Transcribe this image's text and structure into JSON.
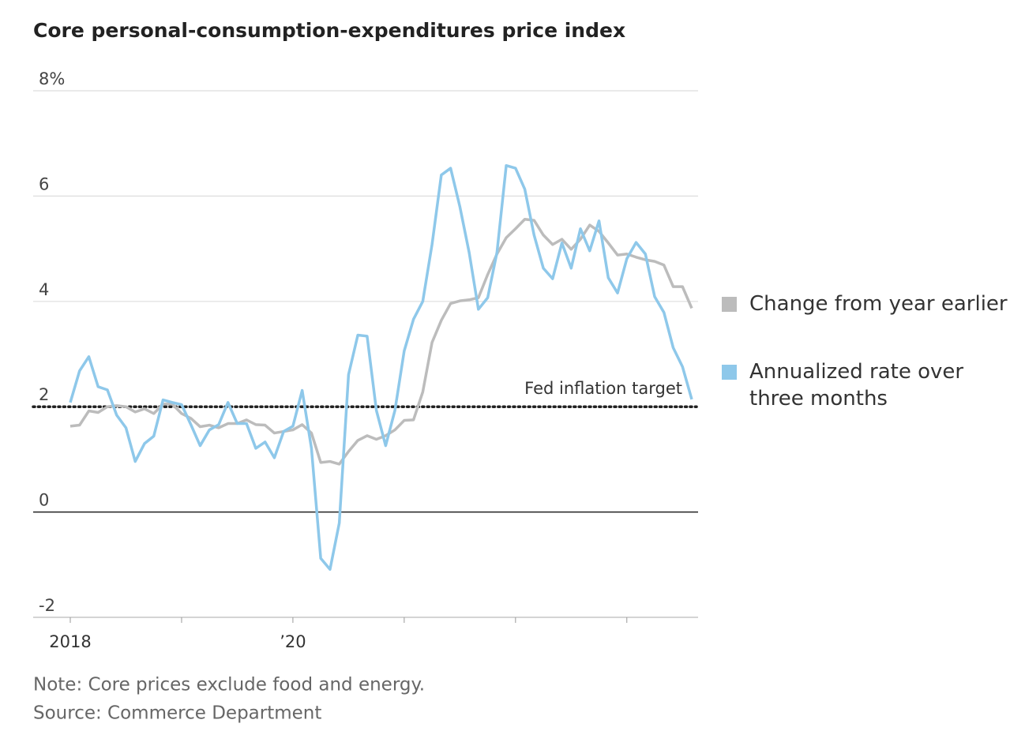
{
  "chart_data": {
    "type": "line",
    "title": "Core personal-consumption-expenditures price index",
    "categories": [
      "2018",
      null,
      null,
      null,
      null,
      null,
      null,
      null,
      null,
      null,
      null,
      null,
      null,
      null,
      null,
      null,
      null,
      null,
      null,
      null,
      null,
      null,
      null,
      null,
      "’20",
      null,
      null,
      null,
      null,
      null,
      null,
      null,
      null,
      null,
      null,
      null,
      null,
      null,
      null,
      null,
      null,
      null,
      null,
      null,
      null,
      null,
      null,
      null,
      null,
      null,
      null,
      null,
      null,
      null,
      null,
      null,
      null,
      null,
      null,
      null,
      null,
      null,
      null,
      null,
      null,
      null,
      null,
      null
    ],
    "series": [
      {
        "name": "Change from year earlier",
        "color": "#bcbcbc",
        "values": [
          1.63,
          1.65,
          1.92,
          1.89,
          2.0,
          2.02,
          2.0,
          1.9,
          1.96,
          1.87,
          2.05,
          2.05,
          1.87,
          1.78,
          1.62,
          1.65,
          1.6,
          1.68,
          1.68,
          1.75,
          1.66,
          1.65,
          1.5,
          1.53,
          1.56,
          1.66,
          1.5,
          0.94,
          0.96,
          0.91,
          1.15,
          1.36,
          1.45,
          1.38,
          1.45,
          1.56,
          1.74,
          1.75,
          2.28,
          3.22,
          3.64,
          3.96,
          4.01,
          4.03,
          4.07,
          4.51,
          4.9,
          5.21,
          5.38,
          5.56,
          5.54,
          5.26,
          5.08,
          5.18,
          4.99,
          5.18,
          5.45,
          5.33,
          5.11,
          4.88,
          4.9,
          4.84,
          4.79,
          4.76,
          4.69,
          4.28,
          4.28,
          3.87
        ]
      },
      {
        "name": "Annualized rate over three months",
        "color": "#8ec8ea",
        "values": [
          2.08,
          2.68,
          2.95,
          2.38,
          2.32,
          1.84,
          1.6,
          0.96,
          1.3,
          1.44,
          2.13,
          2.08,
          2.04,
          1.66,
          1.26,
          1.56,
          1.66,
          2.08,
          1.68,
          1.68,
          1.21,
          1.33,
          1.03,
          1.53,
          1.63,
          2.31,
          1.21,
          -0.88,
          -1.09,
          -0.21,
          2.61,
          3.36,
          3.34,
          1.93,
          1.26,
          1.93,
          3.06,
          3.66,
          4.0,
          5.08,
          6.4,
          6.53,
          5.8,
          4.93,
          3.85,
          4.07,
          4.93,
          6.58,
          6.53,
          6.13,
          5.26,
          4.63,
          4.43,
          5.11,
          4.63,
          5.38,
          4.96,
          5.53,
          4.45,
          4.16,
          4.81,
          5.12,
          4.9,
          4.09,
          3.79,
          3.12,
          2.76,
          2.14
        ]
      }
    ],
    "ylim": [
      -2,
      8
    ],
    "yticks": [
      -2,
      0,
      2,
      4,
      6,
      {
        "value": 8,
        "label": "8%"
      }
    ],
    "grid": true,
    "target": {
      "value": 2,
      "label": "Fed inflation target"
    },
    "notes": [
      "Note: Core prices exclude food and energy.",
      "Source: Commerce Department"
    ]
  }
}
